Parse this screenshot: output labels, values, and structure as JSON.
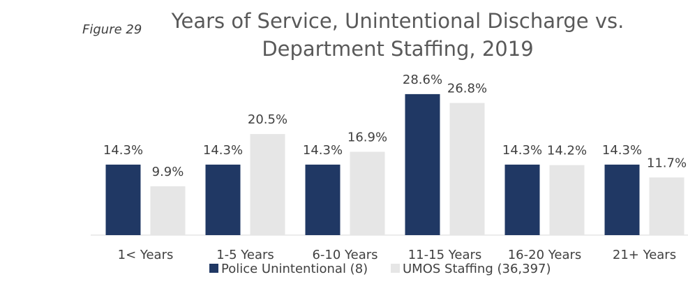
{
  "chart_data": {
    "type": "bar",
    "title": "Years of Service, Unintentional Discharge vs. Department Staffing, 2019",
    "annotation": "Figure 29",
    "categories": [
      "1< Years",
      "1-5 Years",
      "6-10 Years",
      "11-15 Years",
      "16-20 Years",
      "21+ Years"
    ],
    "series": [
      {
        "name": "Police Unintentional (8)",
        "color": "#203864",
        "values": [
          14.3,
          14.3,
          14.3,
          28.6,
          14.3,
          14.3
        ],
        "value_labels": [
          "14.3%",
          "14.3%",
          "14.3%",
          "28.6%",
          "14.3%",
          "14.3%"
        ]
      },
      {
        "name": "UMOS Staffing (36,397)",
        "color": "#e6e6e6",
        "values": [
          9.9,
          20.5,
          16.9,
          26.8,
          14.2,
          11.7
        ],
        "value_labels": [
          "9.9%",
          "20.5%",
          "16.9%",
          "26.8%",
          "14.2%",
          "11.7%"
        ]
      }
    ],
    "ylim": [
      0,
      30
    ],
    "legend": "bottom"
  }
}
